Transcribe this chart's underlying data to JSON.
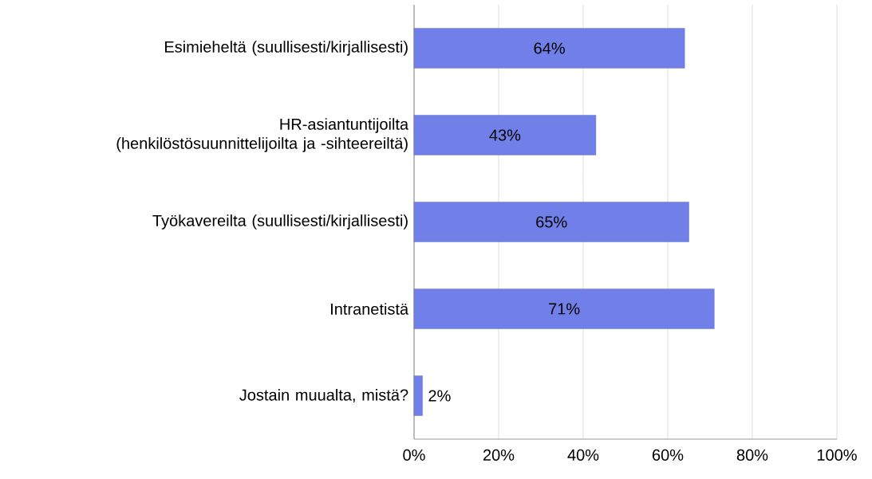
{
  "chart_data": {
    "type": "bar",
    "orientation": "horizontal",
    "categories": [
      "Esimieheltä (suullisesti/kirjallisesti)",
      "HR-asiantuntijoilta (henkilöstösuunnittelijoilta ja -sihteereiltä)",
      "Työkavereilta (suullisesti/kirjallisesti)",
      "Intranetistä",
      "Jostain muualta, mistä?"
    ],
    "values": [
      64,
      43,
      65,
      71,
      2
    ],
    "value_labels": [
      "64%",
      "43%",
      "65%",
      "71%",
      "2%"
    ],
    "color": "#7080e8",
    "xlim": [
      0,
      100
    ],
    "xticks": [
      {
        "value": 0,
        "label": "0%"
      },
      {
        "value": 20,
        "label": "20%"
      },
      {
        "value": 40,
        "label": "40%"
      },
      {
        "value": 60,
        "label": "60%"
      },
      {
        "value": 80,
        "label": "80%"
      },
      {
        "value": 100,
        "label": "100%"
      }
    ],
    "grid": "x"
  }
}
